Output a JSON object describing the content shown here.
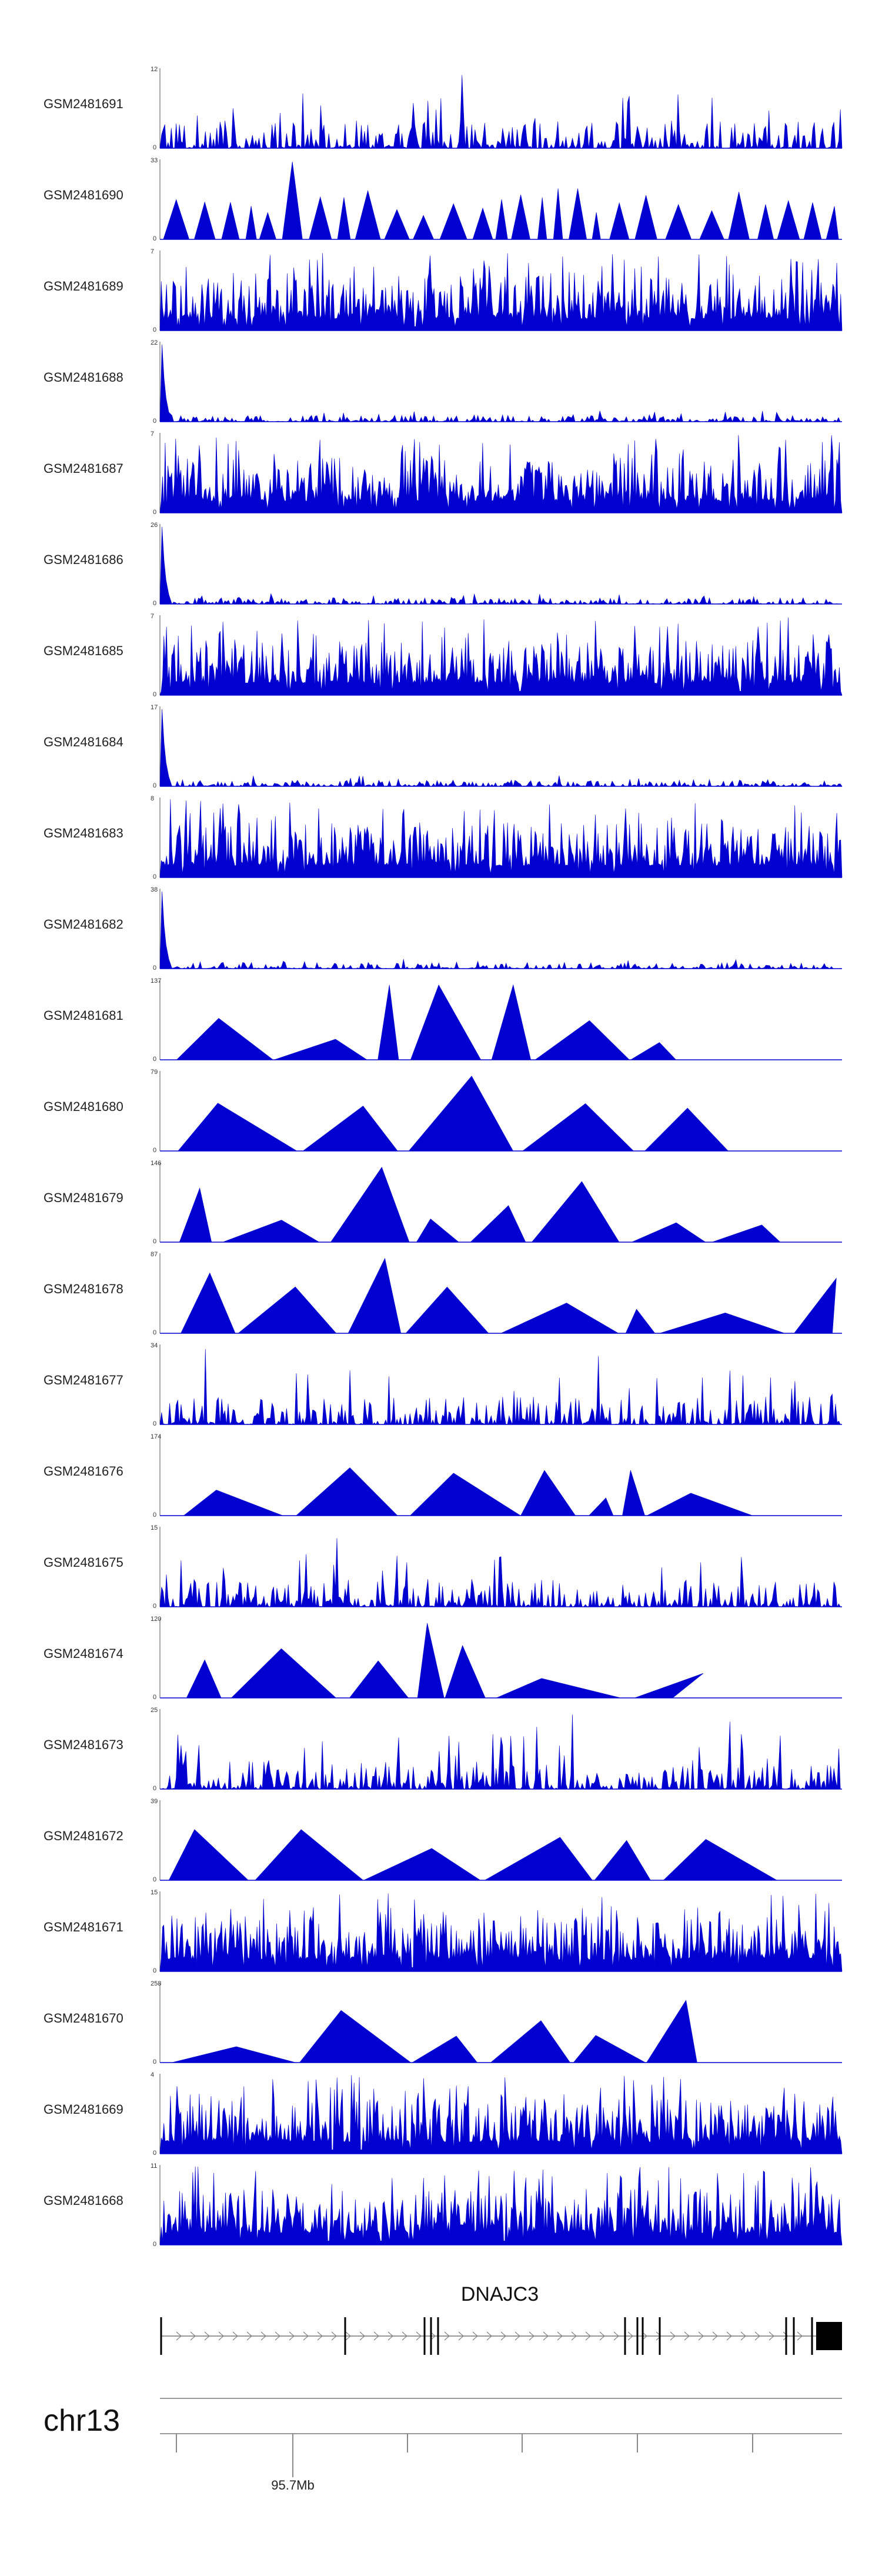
{
  "chart_data": {
    "type": "area",
    "title": "",
    "xlabel": "",
    "ylabel": "",
    "colors": {
      "signal": "#0000d0",
      "gene": "#000000",
      "axis": "#999999"
    },
    "tracks": [
      {
        "name": "GSM2481691",
        "ymax": "12",
        "ymin": "0",
        "style": "spiky"
      },
      {
        "name": "GSM2481690",
        "ymax": "33",
        "ymin": "0",
        "style": "sparse"
      },
      {
        "name": "GSM2481689",
        "ymax": "7",
        "ymin": "0",
        "style": "dense"
      },
      {
        "name": "GSM2481688",
        "ymax": "22",
        "ymin": "0",
        "style": "leftpeak"
      },
      {
        "name": "GSM2481687",
        "ymax": "7",
        "ymin": "0",
        "style": "dense"
      },
      {
        "name": "GSM2481686",
        "ymax": "26",
        "ymin": "0",
        "style": "leftpeak"
      },
      {
        "name": "GSM2481685",
        "ymax": "7",
        "ymin": "0",
        "style": "dense"
      },
      {
        "name": "GSM2481684",
        "ymax": "17",
        "ymin": "0",
        "style": "leftpeak"
      },
      {
        "name": "GSM2481683",
        "ymax": "8",
        "ymin": "0",
        "style": "dense"
      },
      {
        "name": "GSM2481682",
        "ymax": "38",
        "ymin": "0",
        "style": "leftpeak"
      },
      {
        "name": "GSM2481681",
        "ymax": "137",
        "ymin": "0",
        "style": "triangles"
      },
      {
        "name": "GSM2481680",
        "ymax": "79",
        "ymin": "0",
        "style": "triangles"
      },
      {
        "name": "GSM2481679",
        "ymax": "146",
        "ymin": "0",
        "style": "triangles"
      },
      {
        "name": "GSM2481678",
        "ymax": "87",
        "ymin": "0",
        "style": "triangles"
      },
      {
        "name": "GSM2481677",
        "ymax": "34",
        "ymin": "0",
        "style": "spiky"
      },
      {
        "name": "GSM2481676",
        "ymax": "174",
        "ymin": "0",
        "style": "triangles"
      },
      {
        "name": "GSM2481675",
        "ymax": "15",
        "ymin": "0",
        "style": "spiky"
      },
      {
        "name": "GSM2481674",
        "ymax": "120",
        "ymin": "0",
        "style": "triangles"
      },
      {
        "name": "GSM2481673",
        "ymax": "25",
        "ymin": "0",
        "style": "spiky"
      },
      {
        "name": "GSM2481672",
        "ymax": "39",
        "ymin": "0",
        "style": "triangles"
      },
      {
        "name": "GSM2481671",
        "ymax": "15",
        "ymin": "0",
        "style": "dense"
      },
      {
        "name": "GSM2481670",
        "ymax": "258",
        "ymin": "0",
        "style": "triangles"
      },
      {
        "name": "GSM2481669",
        "ymax": "4",
        "ymin": "0",
        "style": "dense"
      },
      {
        "name": "GSM2481668",
        "ymax": "11",
        "ymin": "0",
        "style": "dense"
      }
    ],
    "gene": {
      "name": "DNAJC3",
      "strand": "+"
    },
    "chromosome": "chr13",
    "ticks": [
      {
        "label": "95.7Mb",
        "labeled": true
      }
    ]
  }
}
